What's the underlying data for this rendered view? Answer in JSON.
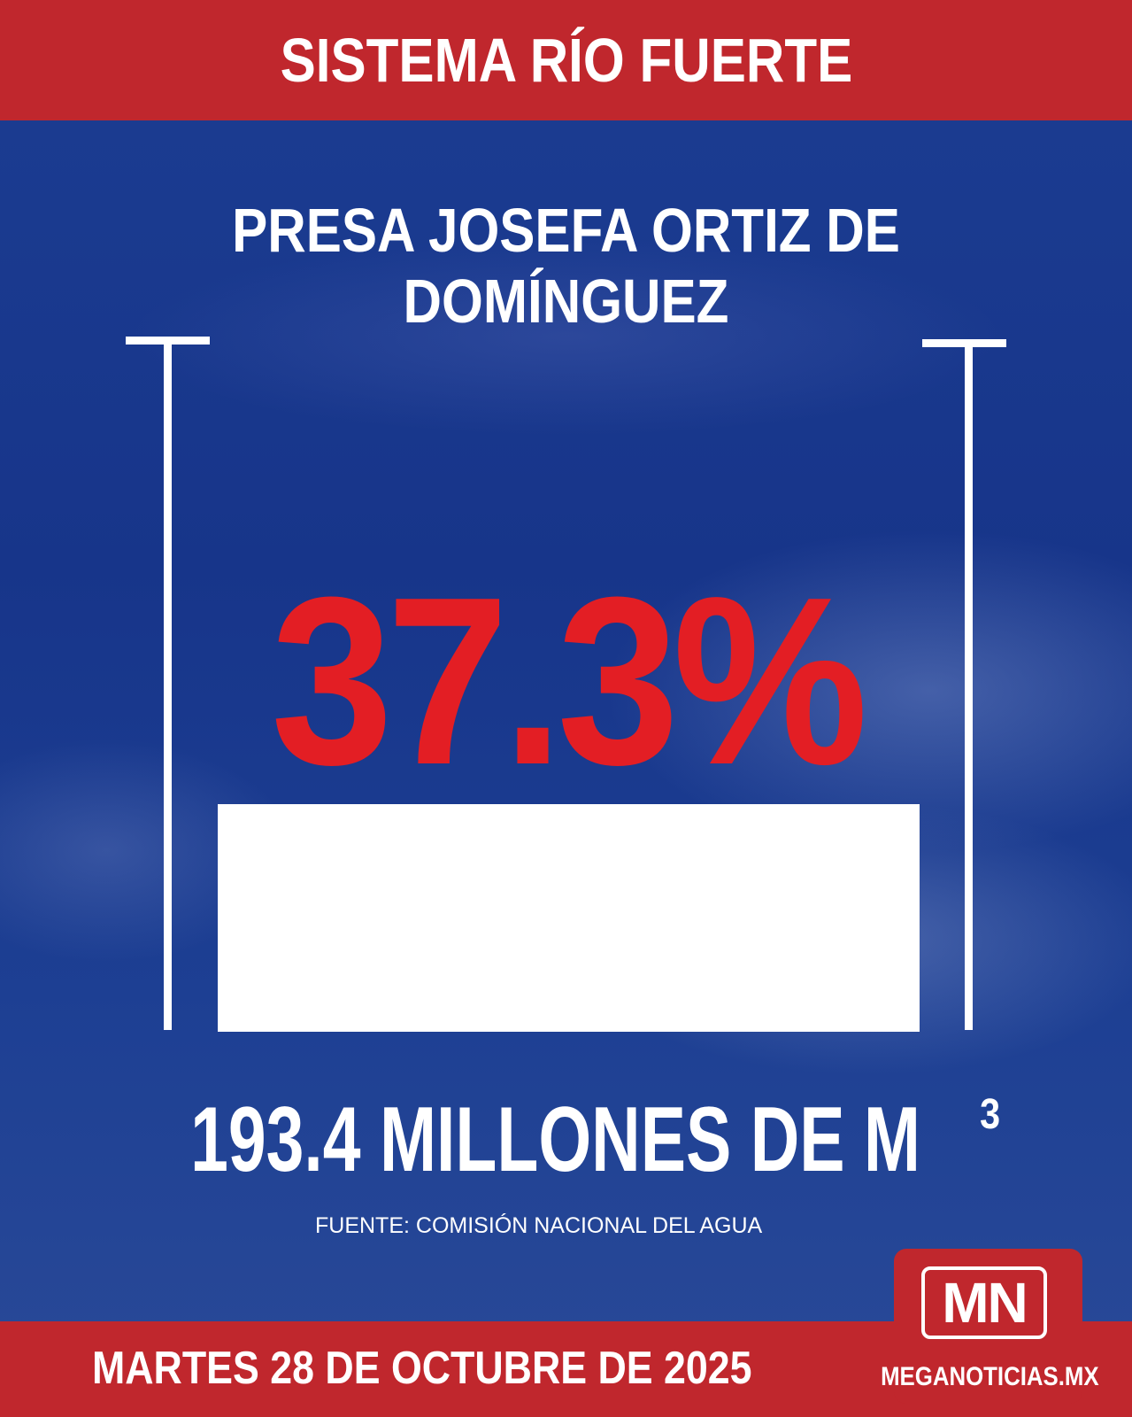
{
  "header": {
    "title": "SISTEMA RÍO FUERTE"
  },
  "dam": {
    "name": "PRESA JOSEFA ORTIZ DE DOMÍNGUEZ"
  },
  "storage": {
    "percent_label": "37.3%",
    "percent_value": 37.3,
    "volume_label": "193.4 MILLONES DE M",
    "volume_unit_sup": "3"
  },
  "source": "FUENTE: COMISIÓN NACIONAL DEL AGUA",
  "footer": {
    "date": "MARTES 28 DE OCTUBRE DE 2025",
    "logo_text": "MN",
    "site": "MEGANOTICIAS.MX"
  },
  "colors": {
    "banner": "#c0272d",
    "background": "#1a3a8c",
    "percent": "#e31e24",
    "text": "#ffffff"
  }
}
